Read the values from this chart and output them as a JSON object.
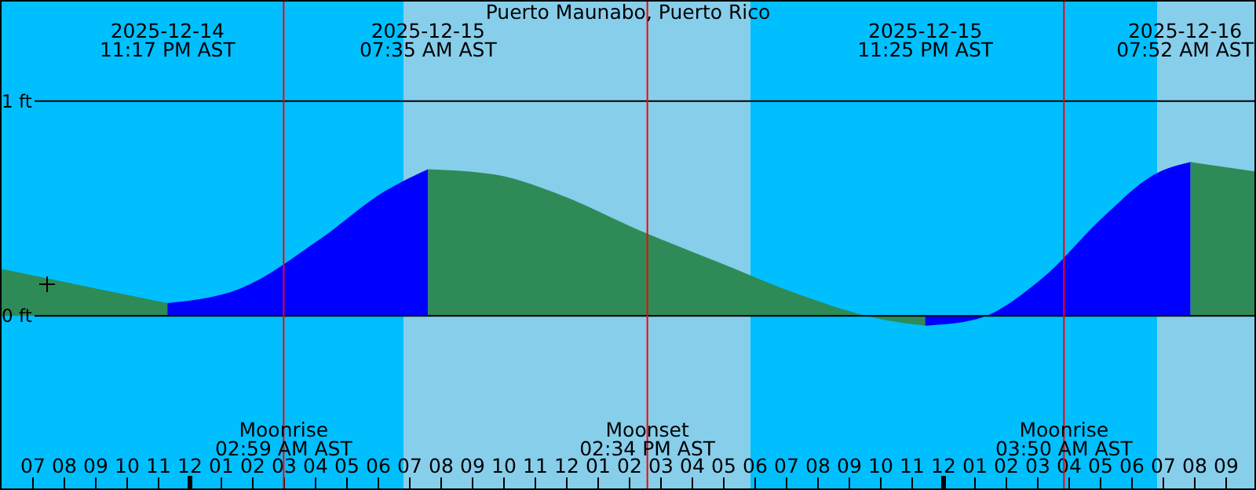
{
  "chart_data": {
    "type": "area",
    "title": "Puerto Maunabo, Puerto Rico",
    "xlim": [
      "2025-12-14T17:57",
      "2025-12-16T09:57"
    ],
    "ylim": [
      -0.81,
      1.47
    ],
    "yticks": [
      {
        "value": 0,
        "label": "0 ft"
      },
      {
        "value": 1,
        "label": "1 ft"
      }
    ],
    "xticks": [
      {
        "value": "2025-12-14T19:00",
        "label": "07"
      },
      {
        "value": "2025-12-14T20:00",
        "label": "08"
      },
      {
        "value": "2025-12-14T21:00",
        "label": "09"
      },
      {
        "value": "2025-12-14T22:00",
        "label": "10"
      },
      {
        "value": "2025-12-14T23:00",
        "label": "11"
      },
      {
        "value": "2025-12-15T00:00",
        "label": "12"
      },
      {
        "value": "2025-12-15T01:00",
        "label": "01"
      },
      {
        "value": "2025-12-15T02:00",
        "label": "02"
      },
      {
        "value": "2025-12-15T03:00",
        "label": "03"
      },
      {
        "value": "2025-12-15T04:00",
        "label": "04"
      },
      {
        "value": "2025-12-15T05:00",
        "label": "05"
      },
      {
        "value": "2025-12-15T06:00",
        "label": "06"
      },
      {
        "value": "2025-12-15T07:00",
        "label": "07"
      },
      {
        "value": "2025-12-15T08:00",
        "label": "08"
      },
      {
        "value": "2025-12-15T09:00",
        "label": "09"
      },
      {
        "value": "2025-12-15T10:00",
        "label": "10"
      },
      {
        "value": "2025-12-15T11:00",
        "label": "11"
      },
      {
        "value": "2025-12-15T12:00",
        "label": "12"
      },
      {
        "value": "2025-12-15T13:00",
        "label": "01"
      },
      {
        "value": "2025-12-15T14:00",
        "label": "02"
      },
      {
        "value": "2025-12-15T15:00",
        "label": "03"
      },
      {
        "value": "2025-12-15T16:00",
        "label": "04"
      },
      {
        "value": "2025-12-15T17:00",
        "label": "05"
      },
      {
        "value": "2025-12-15T18:00",
        "label": "06"
      },
      {
        "value": "2025-12-15T19:00",
        "label": "07"
      },
      {
        "value": "2025-12-15T20:00",
        "label": "08"
      },
      {
        "value": "2025-12-15T21:00",
        "label": "09"
      },
      {
        "value": "2025-12-15T22:00",
        "label": "10"
      },
      {
        "value": "2025-12-15T23:00",
        "label": "11"
      },
      {
        "value": "2025-12-16T00:00",
        "label": "12"
      },
      {
        "value": "2025-12-16T01:00",
        "label": "01"
      },
      {
        "value": "2025-12-16T02:00",
        "label": "02"
      },
      {
        "value": "2025-12-16T03:00",
        "label": "03"
      },
      {
        "value": "2025-12-16T04:00",
        "label": "04"
      },
      {
        "value": "2025-12-16T05:00",
        "label": "05"
      },
      {
        "value": "2025-12-16T06:00",
        "label": "06"
      },
      {
        "value": "2025-12-16T07:00",
        "label": "07"
      },
      {
        "value": "2025-12-16T08:00",
        "label": "08"
      },
      {
        "value": "2025-12-16T09:00",
        "label": "09"
      }
    ],
    "grid": "y",
    "bands": [
      {
        "axis": "x",
        "from": "2025-12-14T17:57",
        "to": "2025-12-15T06:48",
        "color": "#00bfff"
      },
      {
        "axis": "x",
        "from": "2025-12-15T06:48",
        "to": "2025-12-15T17:51",
        "color": "#87ceeb"
      },
      {
        "axis": "x",
        "from": "2025-12-15T17:51",
        "to": "2025-12-16T06:48",
        "color": "#00bfff"
      },
      {
        "axis": "x",
        "from": "2025-12-16T06:48",
        "to": "2025-12-16T09:57",
        "color": "#87ceeb"
      }
    ],
    "ref_lines": [
      {
        "axis": "x",
        "value": "2025-12-15T02:59",
        "label": "Moonrise\n02:59 AM AST",
        "color": "#ff0000"
      },
      {
        "axis": "x",
        "value": "2025-12-15T14:34",
        "label": "Moonset\n02:34 PM AST",
        "color": "#ff0000"
      },
      {
        "axis": "x",
        "value": "2025-12-16T03:50",
        "label": "Moonrise\n03:50 AM AST",
        "color": "#ff0000"
      }
    ],
    "series": [
      {
        "color": "#2e8b57",
        "x": [
          "2025-12-14T17:57",
          "2025-12-14T21:01",
          "2025-12-14T23:17"
        ],
        "values": [
          0.22,
          0.127,
          0.06
        ]
      },
      {
        "color": "#0000ff",
        "x": [
          "2025-12-14T23:17",
          "2025-12-15T01:36",
          "2025-12-15T04:09",
          "2025-12-15T06:12",
          "2025-12-15T07:35"
        ],
        "values": [
          0.06,
          0.127,
          0.358,
          0.58,
          0.683
        ]
      },
      {
        "color": "#2e8b57",
        "x": [
          "2025-12-15T07:35",
          "2025-12-15T09:45",
          "2025-12-15T11:48",
          "2025-12-15T14:21",
          "2025-12-15T16:54",
          "2025-12-15T19:27",
          "2025-12-15T22:00",
          "2025-12-15T23:25"
        ],
        "values": [
          0.683,
          0.657,
          0.563,
          0.396,
          0.246,
          0.097,
          -0.015,
          -0.045
        ]
      },
      {
        "color": "#0000ff",
        "x": [
          "2025-12-15T23:25",
          "2025-12-16T01:03",
          "2025-12-16T03:06",
          "2025-12-16T05:09",
          "2025-12-16T06:42",
          "2025-12-16T07:52"
        ],
        "values": [
          -0.045,
          -0.015,
          0.17,
          0.47,
          0.657,
          0.716
        ]
      },
      {
        "color": "#2e8b57",
        "x": [
          "2025-12-16T07:52",
          "2025-12-16T09:57"
        ],
        "values": [
          0.716,
          0.672
        ]
      }
    ],
    "annotations": [
      "2025-12-14\n11:17 PM AST",
      "2025-12-15\n07:35 AM AST",
      "2025-12-15\n11:25 PM AST",
      "2025-12-16\n07:52 AM AST"
    ]
  }
}
